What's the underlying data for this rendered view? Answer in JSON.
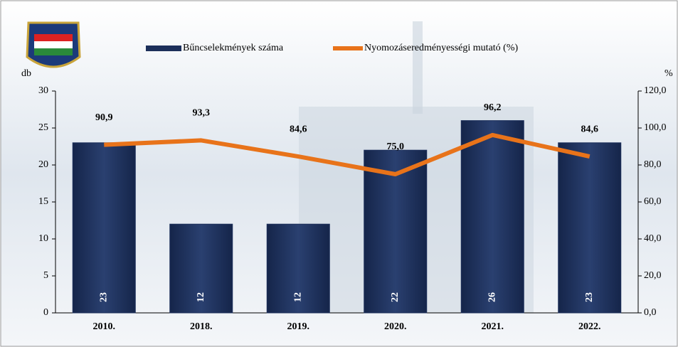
{
  "chart_data": {
    "type": "bar",
    "categories": [
      "2010.",
      "2018.",
      "2019.",
      "2020.",
      "2021.",
      "2022."
    ],
    "series": [
      {
        "name": "Bűncselekmények száma",
        "type": "bar",
        "color": "#1c2f5a",
        "values": [
          23,
          12,
          12,
          22,
          26,
          23
        ]
      },
      {
        "name": "Nyomozáseredményességi mutató (%)",
        "type": "line",
        "axis": "y2",
        "color": "#e8731a",
        "values": [
          90.9,
          93.3,
          84.6,
          75.0,
          96.2,
          84.6
        ],
        "value_labels": [
          "90,9",
          "93,3",
          "84,6",
          "75,0",
          "96,2",
          "84,6"
        ]
      }
    ],
    "ylabel": "db",
    "y2label": "%",
    "ylim": [
      0,
      30
    ],
    "yticks": [
      0,
      5,
      10,
      15,
      20,
      25,
      30
    ],
    "y2lim": [
      0,
      120
    ],
    "y2ticks": [
      {
        "value": 0,
        "label": "0,0"
      },
      {
        "value": 20,
        "label": "20,0"
      },
      {
        "value": 40,
        "label": "40,0"
      },
      {
        "value": 60,
        "label": "60,0"
      },
      {
        "value": 80,
        "label": "80,0"
      },
      {
        "value": 100,
        "label": "100,0"
      },
      {
        "value": 120,
        "label": "120,0"
      }
    ],
    "legend": "top"
  }
}
